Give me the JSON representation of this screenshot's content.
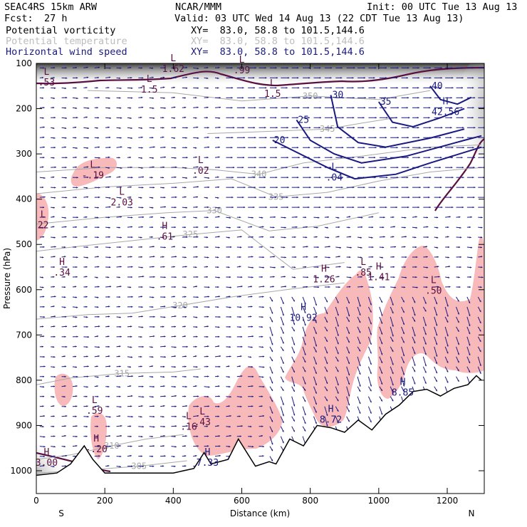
{
  "header": {
    "model": "SEAC4RS 15km ARW",
    "center": "NCAR/MMM",
    "init": "Init: 00 UTC Tue 13 Aug 13",
    "fcst_label": "Fcst:",
    "fcst_value": "27 h",
    "valid": "Valid: 03 UTC Wed 14 Aug 13 (22 CDT Tue 13 Aug 13)"
  },
  "fields": [
    {
      "name": "Potential vorticity",
      "xy": "XY=  83.0, 58.8 to 101.5,144.6",
      "color": "#000000"
    },
    {
      "name": "Potential temperature",
      "xy": "XY=  83.0, 58.8 to 101.5,144.6",
      "color": "#bdbdbd"
    },
    {
      "name": "Horizontal wind speed",
      "xy": "XY=  83.0, 58.8 to 101.5,144.6",
      "color": "#1a1a80"
    }
  ],
  "chart_data": {
    "type": "cross-section",
    "xlabel": "Distance (km)",
    "ylabel": "Pressure (hPa)",
    "xlim": [
      0,
      1300
    ],
    "ylim": [
      1050,
      100
    ],
    "x_ticks": [
      0,
      200,
      400,
      600,
      800,
      1000,
      1200
    ],
    "y_ticks": [
      100,
      200,
      300,
      400,
      500,
      600,
      700,
      800,
      900,
      1000
    ],
    "x_end_labels": {
      "left": "S",
      "right": "N"
    },
    "colors": {
      "pv_fill": "#f7b9b9",
      "pv_contour": "#5a1040",
      "theta": "#a8a8a8",
      "wind": "#1a1a80",
      "terrain": "#000000",
      "high_pv_shade": "#2a2a2a"
    },
    "theta_contours": [
      {
        "value": "305",
        "points": [
          [
            0,
            1005
          ],
          [
            120,
            1000
          ],
          [
            300,
            990
          ],
          [
            440,
            978
          ]
        ]
      },
      {
        "value": "310",
        "points": [
          [
            0,
            975
          ],
          [
            100,
            965
          ],
          [
            220,
            945
          ],
          [
            320,
            930
          ],
          [
            430,
            920
          ]
        ]
      },
      {
        "value": "315",
        "points": [
          [
            0,
            810
          ],
          [
            100,
            795
          ],
          [
            250,
            785
          ],
          [
            400,
            782
          ],
          [
            480,
            775
          ]
        ]
      },
      {
        "value": "320",
        "points": [
          [
            0,
            665
          ],
          [
            150,
            655
          ],
          [
            280,
            652
          ],
          [
            420,
            635
          ],
          [
            580,
            615
          ],
          [
            750,
            598
          ],
          [
            900,
            585
          ]
        ]
      },
      {
        "value": "325",
        "points": [
          [
            0,
            515
          ],
          [
            150,
            502
          ],
          [
            300,
            490
          ],
          [
            450,
            478
          ],
          [
            600,
            468
          ],
          [
            750,
            555
          ],
          [
            900,
            540
          ]
        ]
      },
      {
        "value": "330",
        "points": [
          [
            0,
            455
          ],
          [
            200,
            440
          ],
          [
            380,
            430
          ],
          [
            520,
            425
          ],
          [
            680,
            470
          ],
          [
            820,
            460
          ],
          [
            1000,
            430
          ]
        ]
      },
      {
        "value": "335",
        "points": [
          [
            0,
            388
          ],
          [
            200,
            373
          ],
          [
            400,
            365
          ],
          [
            570,
            355
          ],
          [
            700,
            395
          ],
          [
            850,
            385
          ],
          [
            1000,
            360
          ],
          [
            1150,
            340
          ],
          [
            1300,
            330
          ]
        ]
      },
      {
        "value": "340",
        "points": [
          [
            0,
            340
          ],
          [
            200,
            330
          ],
          [
            400,
            330
          ],
          [
            520,
            335
          ],
          [
            650,
            345
          ],
          [
            780,
            320
          ],
          [
            950,
            305
          ],
          [
            1150,
            285
          ],
          [
            1300,
            280
          ]
        ]
      },
      {
        "value": "345",
        "points": [
          [
            500,
            255
          ],
          [
            620,
            252
          ],
          [
            750,
            248
          ],
          [
            850,
            245
          ],
          [
            950,
            232
          ],
          [
            1050,
            220
          ]
        ]
      },
      {
        "value": "350",
        "points": [
          [
            150,
            160
          ],
          [
            400,
            165
          ],
          [
            600,
            183
          ],
          [
            800,
            172
          ],
          [
            1000,
            180
          ],
          [
            1150,
            160
          ]
        ]
      }
    ],
    "wind_speed_contours": [
      {
        "value": "20",
        "points": [
          [
            690,
            270
          ],
          [
            770,
            300
          ],
          [
            850,
            330
          ],
          [
            930,
            355
          ],
          [
            1050,
            345
          ],
          [
            1150,
            320
          ],
          [
            1300,
            285
          ]
        ]
      },
      {
        "value": "25",
        "points": [
          [
            760,
            225
          ],
          [
            800,
            270
          ],
          [
            870,
            300
          ],
          [
            950,
            320
          ],
          [
            1080,
            305
          ],
          [
            1250,
            270
          ],
          [
            1300,
            260
          ]
        ]
      },
      {
        "value": "30",
        "points": [
          [
            860,
            170
          ],
          [
            880,
            240
          ],
          [
            940,
            275
          ],
          [
            1020,
            285
          ],
          [
            1150,
            265
          ],
          [
            1250,
            245
          ]
        ]
      },
      {
        "value": "35",
        "points": [
          [
            1000,
            185
          ],
          [
            1040,
            230
          ],
          [
            1100,
            240
          ],
          [
            1180,
            220
          ],
          [
            1250,
            200
          ]
        ]
      },
      {
        "value": "40",
        "points": [
          [
            1150,
            150
          ],
          [
            1180,
            180
          ],
          [
            1230,
            190
          ],
          [
            1270,
            175
          ]
        ]
      }
    ],
    "terrain_profile": [
      [
        0,
        1010
      ],
      [
        60,
        1005
      ],
      [
        100,
        985
      ],
      [
        140,
        945
      ],
      [
        165,
        975
      ],
      [
        200,
        1005
      ],
      [
        400,
        1005
      ],
      [
        460,
        995
      ],
      [
        490,
        960
      ],
      [
        510,
        985
      ],
      [
        560,
        975
      ],
      [
        590,
        930
      ],
      [
        640,
        990
      ],
      [
        680,
        980
      ],
      [
        700,
        985
      ],
      [
        740,
        930
      ],
      [
        780,
        945
      ],
      [
        820,
        900
      ],
      [
        860,
        905
      ],
      [
        900,
        915
      ],
      [
        940,
        888
      ],
      [
        980,
        910
      ],
      [
        1020,
        875
      ],
      [
        1060,
        855
      ],
      [
        1100,
        825
      ],
      [
        1140,
        820
      ],
      [
        1180,
        835
      ],
      [
        1220,
        818
      ],
      [
        1260,
        810
      ],
      [
        1285,
        790
      ],
      [
        1300,
        800
      ]
    ],
    "extrema": [
      {
        "type": "L",
        "value": ".53",
        "x": 30,
        "y": 135
      },
      {
        "type": "L",
        "value": ".02",
        "x": 480,
        "y": 330
      },
      {
        "type": "L",
        "value": "-.19",
        "x": 165,
        "y": 340
      },
      {
        "type": "L",
        "value": "2.03",
        "x": 250,
        "y": 400
      },
      {
        "type": "H",
        "value": ".61",
        "x": 375,
        "y": 475
      },
      {
        "type": "H",
        "value": ".34",
        "x": 75,
        "y": 555
      },
      {
        "type": "L",
        "value": ".04",
        "x": 870,
        "y": 345
      },
      {
        "type": "H",
        "value": "1.26",
        "x": 840,
        "y": 570
      },
      {
        "type": "L",
        "value": ".85",
        "x": 955,
        "y": 555
      },
      {
        "type": "H",
        "value": "1.41",
        "x": 1000,
        "y": 565
      },
      {
        "type": "L",
        "value": ".50",
        "x": 1160,
        "y": 595
      },
      {
        "type": "H",
        "value": "10.92",
        "x": 780,
        "y": 655
      },
      {
        "type": "H",
        "value": "8.85",
        "x": 1070,
        "y": 820
      },
      {
        "type": "L",
        "value": ".59",
        "x": 170,
        "y": 860
      },
      {
        "type": "L",
        "value": ".43",
        "x": 485,
        "y": 885
      },
      {
        "type": "L",
        "value": ".16",
        "x": 445,
        "y": 895
      },
      {
        "type": "H",
        "value": "8.72",
        "x": 860,
        "y": 880
      },
      {
        "type": "H",
        "value": "-.20",
        "x": 175,
        "y": 945
      },
      {
        "type": "H",
        "value": "7.33",
        "x": 500,
        "y": 975
      },
      {
        "type": "H",
        "value": "3.00",
        "x": 30,
        "y": 975
      },
      {
        "type": "H",
        "value": "42.56",
        "x": 1195,
        "y": 200
      },
      {
        "type": "L",
        "value": "1.62",
        "x": 400,
        "y": 105
      },
      {
        "type": "L",
        "value": ".99",
        "x": 600,
        "y": 108
      },
      {
        "type": "L",
        "value": "1.5",
        "x": 330,
        "y": 150
      },
      {
        "type": "L",
        "value": "1.5",
        "x": 690,
        "y": 160
      },
      {
        "type": "L",
        "value": "22",
        "x": 20,
        "y": 450
      }
    ]
  }
}
